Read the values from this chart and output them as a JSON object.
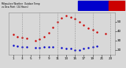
{
  "title": "Milwaukee Weather Outdoor Temperature\nvs Dew Point\n(24 Hours)",
  "temp_hours": [
    1,
    2,
    3,
    4,
    6,
    7,
    8,
    9,
    10,
    11,
    12,
    13,
    14,
    15,
    16,
    17,
    18,
    19,
    20,
    22
  ],
  "temp_values": [
    36,
    34,
    33,
    32,
    30,
    31,
    34,
    38,
    44,
    50,
    54,
    56,
    55,
    53,
    50,
    46,
    43,
    41,
    39,
    37
  ],
  "dew_hours": [
    1,
    2,
    3,
    4,
    6,
    7,
    8,
    9,
    10,
    12,
    13,
    14,
    15,
    16,
    17,
    18,
    19,
    20
  ],
  "dew_values": [
    25,
    24,
    23,
    23,
    22,
    22,
    23,
    23,
    23,
    22,
    21,
    21,
    20,
    20,
    21,
    22,
    23,
    24
  ],
  "ylim": [
    15,
    60
  ],
  "ytick_vals": [
    20,
    30,
    40,
    50
  ],
  "ytick_labels": [
    "20",
    "30",
    "40",
    "50"
  ],
  "xtick_vals": [
    1,
    3,
    5,
    7,
    9,
    11,
    13,
    15,
    17,
    19,
    21,
    23
  ],
  "xtick_labels": [
    "1",
    "3",
    "5",
    "7",
    "9",
    "11",
    "13",
    "15",
    "17",
    "19",
    "21",
    "23"
  ],
  "temp_color": "#cc0000",
  "dew_color": "#0000cc",
  "bg_color": "#d8d8d8",
  "plot_bg": "#d8d8d8",
  "grid_color": "#888888",
  "title_bar_blue": "#0000cc",
  "title_bar_red": "#cc0000",
  "text_color": "#000000",
  "grid_x_positions": [
    3,
    7,
    11,
    15,
    19,
    23
  ],
  "title_text": "Milwaukee Weather  Outdoor Temperature\nvs Dew Point  (24 Hours)"
}
